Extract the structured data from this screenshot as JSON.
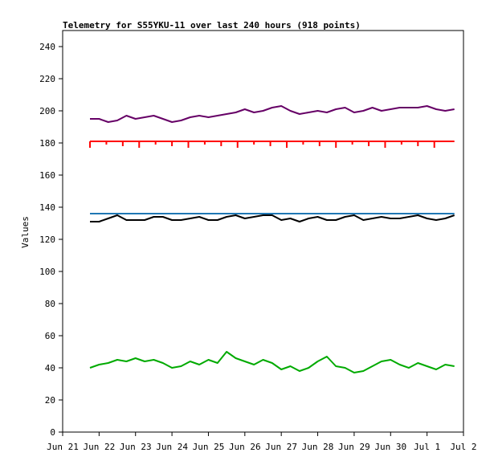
{
  "chart_data": {
    "type": "line",
    "title": "Telemetry for S55YKU-11 over last 240 hours (918 points)",
    "xlabel": "",
    "ylabel": "Values",
    "ylim": [
      0,
      250
    ],
    "yticks": [
      0,
      20,
      40,
      60,
      80,
      100,
      120,
      140,
      160,
      180,
      200,
      220,
      240
    ],
    "xlim": [
      "2024-06-21",
      "2024-07-02"
    ],
    "xticks": [
      {
        "date": "2024-06-21",
        "label": "Jun 21"
      },
      {
        "date": "2024-06-22",
        "label": "Jun 22"
      },
      {
        "date": "2024-06-23",
        "label": "Jun 23"
      },
      {
        "date": "2024-06-24",
        "label": "Jun 24"
      },
      {
        "date": "2024-06-25",
        "label": "Jun 25"
      },
      {
        "date": "2024-06-26",
        "label": "Jun 26"
      },
      {
        "date": "2024-06-27",
        "label": "Jun 27"
      },
      {
        "date": "2024-06-28",
        "label": "Jun 28"
      },
      {
        "date": "2024-06-29",
        "label": "Jun 29"
      },
      {
        "date": "2024-06-30",
        "label": "Jun 30"
      },
      {
        "date": "2024-07-01",
        "label": "Jul 1"
      },
      {
        "date": "2024-07-02",
        "label": "Jul 2"
      }
    ],
    "grid": false,
    "legend": "none",
    "series": [
      {
        "color": "#660066",
        "x": [
          "2024-06-21T18:00",
          "2024-06-22T00:00",
          "2024-06-22T06:00",
          "2024-06-22T12:00",
          "2024-06-22T18:00",
          "2024-06-23T00:00",
          "2024-06-23T06:00",
          "2024-06-23T12:00",
          "2024-06-23T18:00",
          "2024-06-24T00:00",
          "2024-06-24T06:00",
          "2024-06-24T12:00",
          "2024-06-24T18:00",
          "2024-06-25T00:00",
          "2024-06-25T06:00",
          "2024-06-25T12:00",
          "2024-06-25T18:00",
          "2024-06-26T00:00",
          "2024-06-26T06:00",
          "2024-06-26T12:00",
          "2024-06-26T18:00",
          "2024-06-27T00:00",
          "2024-06-27T06:00",
          "2024-06-27T12:00",
          "2024-06-27T18:00",
          "2024-06-28T00:00",
          "2024-06-28T06:00",
          "2024-06-28T12:00",
          "2024-06-28T18:00",
          "2024-06-29T00:00",
          "2024-06-29T06:00",
          "2024-06-29T12:00",
          "2024-06-29T18:00",
          "2024-06-30T00:00",
          "2024-06-30T06:00",
          "2024-06-30T12:00",
          "2024-06-30T18:00",
          "2024-07-01T00:00",
          "2024-07-01T06:00",
          "2024-07-01T12:00",
          "2024-07-01T18:00"
        ],
        "values": [
          195,
          195,
          193,
          194,
          197,
          195,
          196,
          197,
          195,
          193,
          194,
          196,
          197,
          196,
          197,
          198,
          199,
          201,
          199,
          200,
          202,
          203,
          200,
          198,
          199,
          200,
          199,
          201,
          202,
          199,
          200,
          202,
          200,
          201,
          202,
          202,
          202,
          203,
          201,
          200,
          201
        ]
      },
      {
        "color": "#ff0000",
        "x": [
          "2024-06-21T18:00",
          "2024-06-22T12:00",
          "2024-06-23T00:00",
          "2024-06-23T12:00",
          "2024-06-24T00:00",
          "2024-06-24T12:00",
          "2024-06-25T00:00",
          "2024-06-25T12:00",
          "2024-06-26T00:00",
          "2024-06-26T12:00",
          "2024-06-27T00:00",
          "2024-06-27T12:00",
          "2024-06-28T00:00",
          "2024-06-28T12:00",
          "2024-06-29T00:00",
          "2024-06-29T12:00",
          "2024-06-30T00:00",
          "2024-06-30T12:00",
          "2024-07-01T00:00",
          "2024-07-01T12:00",
          "2024-07-01T18:00"
        ],
        "values": [
          181,
          181,
          181,
          181,
          181,
          181,
          181,
          181,
          181,
          181,
          181,
          181,
          181,
          181,
          181,
          181,
          181,
          181,
          181,
          181,
          181
        ],
        "dips_to": 177
      },
      {
        "color": "#1f77b4",
        "x": [
          "2024-06-21T18:00",
          "2024-07-01T18:00"
        ],
        "values": [
          136,
          136
        ]
      },
      {
        "color": "#000000",
        "x": [
          "2024-06-21T18:00",
          "2024-06-22T00:00",
          "2024-06-22T06:00",
          "2024-06-22T12:00",
          "2024-06-22T18:00",
          "2024-06-23T00:00",
          "2024-06-23T06:00",
          "2024-06-23T12:00",
          "2024-06-23T18:00",
          "2024-06-24T00:00",
          "2024-06-24T06:00",
          "2024-06-24T12:00",
          "2024-06-24T18:00",
          "2024-06-25T00:00",
          "2024-06-25T06:00",
          "2024-06-25T12:00",
          "2024-06-25T18:00",
          "2024-06-26T00:00",
          "2024-06-26T06:00",
          "2024-06-26T12:00",
          "2024-06-26T18:00",
          "2024-06-27T00:00",
          "2024-06-27T06:00",
          "2024-06-27T12:00",
          "2024-06-27T18:00",
          "2024-06-28T00:00",
          "2024-06-28T06:00",
          "2024-06-28T12:00",
          "2024-06-28T18:00",
          "2024-06-29T00:00",
          "2024-06-29T06:00",
          "2024-06-29T12:00",
          "2024-06-29T18:00",
          "2024-06-30T00:00",
          "2024-06-30T06:00",
          "2024-06-30T12:00",
          "2024-06-30T18:00",
          "2024-07-01T00:00",
          "2024-07-01T06:00",
          "2024-07-01T12:00",
          "2024-07-01T18:00"
        ],
        "values": [
          131,
          131,
          133,
          135,
          132,
          132,
          132,
          134,
          134,
          132,
          132,
          133,
          134,
          132,
          132,
          134,
          135,
          133,
          134,
          135,
          135,
          132,
          133,
          131,
          133,
          134,
          132,
          132,
          134,
          135,
          132,
          133,
          134,
          133,
          133,
          134,
          135,
          133,
          132,
          133,
          135
        ]
      },
      {
        "color": "#00aa00",
        "x": [
          "2024-06-21T18:00",
          "2024-06-22T00:00",
          "2024-06-22T06:00",
          "2024-06-22T12:00",
          "2024-06-22T18:00",
          "2024-06-23T00:00",
          "2024-06-23T06:00",
          "2024-06-23T12:00",
          "2024-06-23T18:00",
          "2024-06-24T00:00",
          "2024-06-24T06:00",
          "2024-06-24T12:00",
          "2024-06-24T18:00",
          "2024-06-25T00:00",
          "2024-06-25T06:00",
          "2024-06-25T12:00",
          "2024-06-25T18:00",
          "2024-06-26T00:00",
          "2024-06-26T06:00",
          "2024-06-26T12:00",
          "2024-06-26T18:00",
          "2024-06-27T00:00",
          "2024-06-27T06:00",
          "2024-06-27T12:00",
          "2024-06-27T18:00",
          "2024-06-28T00:00",
          "2024-06-28T06:00",
          "2024-06-28T12:00",
          "2024-06-28T18:00",
          "2024-06-29T00:00",
          "2024-06-29T06:00",
          "2024-06-29T12:00",
          "2024-06-29T18:00",
          "2024-06-30T00:00",
          "2024-06-30T06:00",
          "2024-06-30T12:00",
          "2024-06-30T18:00",
          "2024-07-01T00:00",
          "2024-07-01T06:00",
          "2024-07-01T12:00",
          "2024-07-01T18:00"
        ],
        "values": [
          40,
          42,
          43,
          45,
          44,
          46,
          44,
          45,
          43,
          40,
          41,
          44,
          42,
          45,
          43,
          50,
          46,
          44,
          42,
          45,
          43,
          39,
          41,
          38,
          40,
          44,
          47,
          41,
          40,
          37,
          38,
          41,
          44,
          45,
          42,
          40,
          43,
          41,
          39,
          42,
          41
        ]
      }
    ]
  }
}
